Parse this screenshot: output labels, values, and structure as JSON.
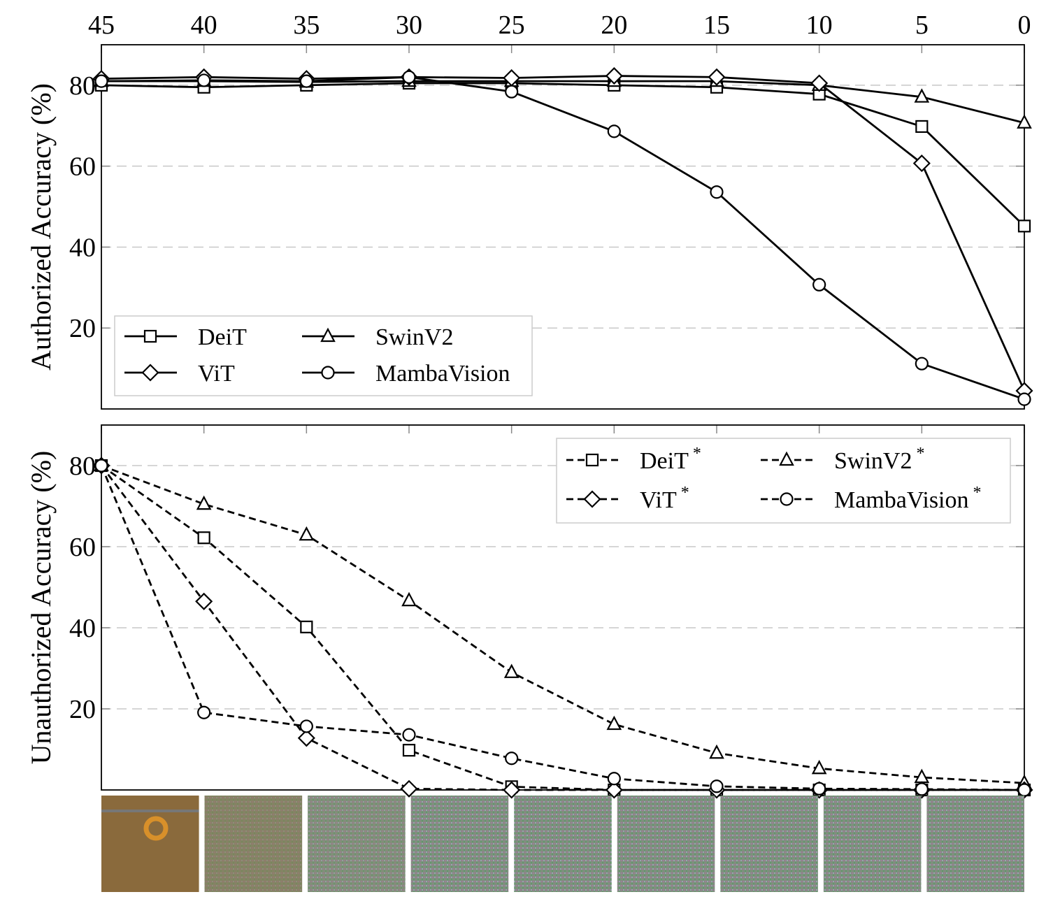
{
  "chart_data": [
    {
      "type": "line",
      "title": "",
      "xlabel": "",
      "ylabel": "Authorized Accuracy (%)",
      "x": [
        45,
        40,
        35,
        30,
        25,
        20,
        15,
        10,
        5,
        0
      ],
      "xlim": [
        45,
        0
      ],
      "ylim": [
        0,
        90
      ],
      "yticks": [
        20,
        40,
        60,
        80
      ],
      "grid": "horizontal dashed",
      "legend_position": "bottom-left",
      "series": [
        {
          "name": "DeiT",
          "marker": "square",
          "style": "solid",
          "values": [
            80,
            79.5,
            80,
            80.5,
            80.5,
            80,
            79.5,
            77.8,
            69.8,
            45.2
          ]
        },
        {
          "name": "SwinV2",
          "marker": "triangle",
          "style": "solid",
          "values": [
            81,
            81,
            80.8,
            81,
            81,
            81,
            81,
            80,
            77.1,
            70.7
          ]
        },
        {
          "name": "ViT",
          "marker": "diamond",
          "style": "solid",
          "values": [
            81.6,
            82,
            81.6,
            82,
            81.8,
            82.3,
            82,
            80.5,
            60.7,
            4.5
          ]
        },
        {
          "name": "MambaVision",
          "marker": "circle",
          "style": "solid",
          "values": [
            81,
            81.2,
            81,
            82,
            78.4,
            68.6,
            53.6,
            30.7,
            11.2,
            2.4
          ]
        }
      ]
    },
    {
      "type": "line",
      "title": "",
      "xlabel": "",
      "ylabel": "Unauthorized Accuracy (%)",
      "x": [
        45,
        40,
        35,
        30,
        25,
        20,
        15,
        10,
        5,
        0
      ],
      "xlim": [
        45,
        0
      ],
      "ylim": [
        0,
        90
      ],
      "yticks": [
        20,
        40,
        60,
        80
      ],
      "grid": "horizontal dashed",
      "legend_position": "top-right",
      "series": [
        {
          "name": "DeiT",
          "sup": "*",
          "marker": "square",
          "style": "dashed",
          "values": [
            80,
            62.2,
            40.2,
            9.8,
            0.8,
            0,
            0,
            0,
            0,
            0
          ]
        },
        {
          "name": "SwinV2",
          "sup": "*",
          "marker": "triangle",
          "style": "dashed",
          "values": [
            80,
            70.5,
            62.9,
            46.7,
            29,
            16.2,
            9.1,
            5.3,
            3.1,
            1.7
          ]
        },
        {
          "name": "ViT",
          "sup": "*",
          "marker": "diamond",
          "style": "dashed",
          "values": [
            80,
            46.5,
            12.8,
            0.3,
            0,
            0,
            0,
            0,
            0,
            0
          ]
        },
        {
          "name": "MambaVision",
          "sup": "*",
          "marker": "circle",
          "style": "dashed",
          "values": [
            80,
            19.1,
            15.7,
            13.6,
            7.8,
            2.8,
            0.9,
            0.3,
            0.2,
            0
          ]
        }
      ]
    }
  ],
  "thumbnails": {
    "count": 9,
    "first_color": "#8a6a3c",
    "noise_color": "#7f8f7e"
  }
}
